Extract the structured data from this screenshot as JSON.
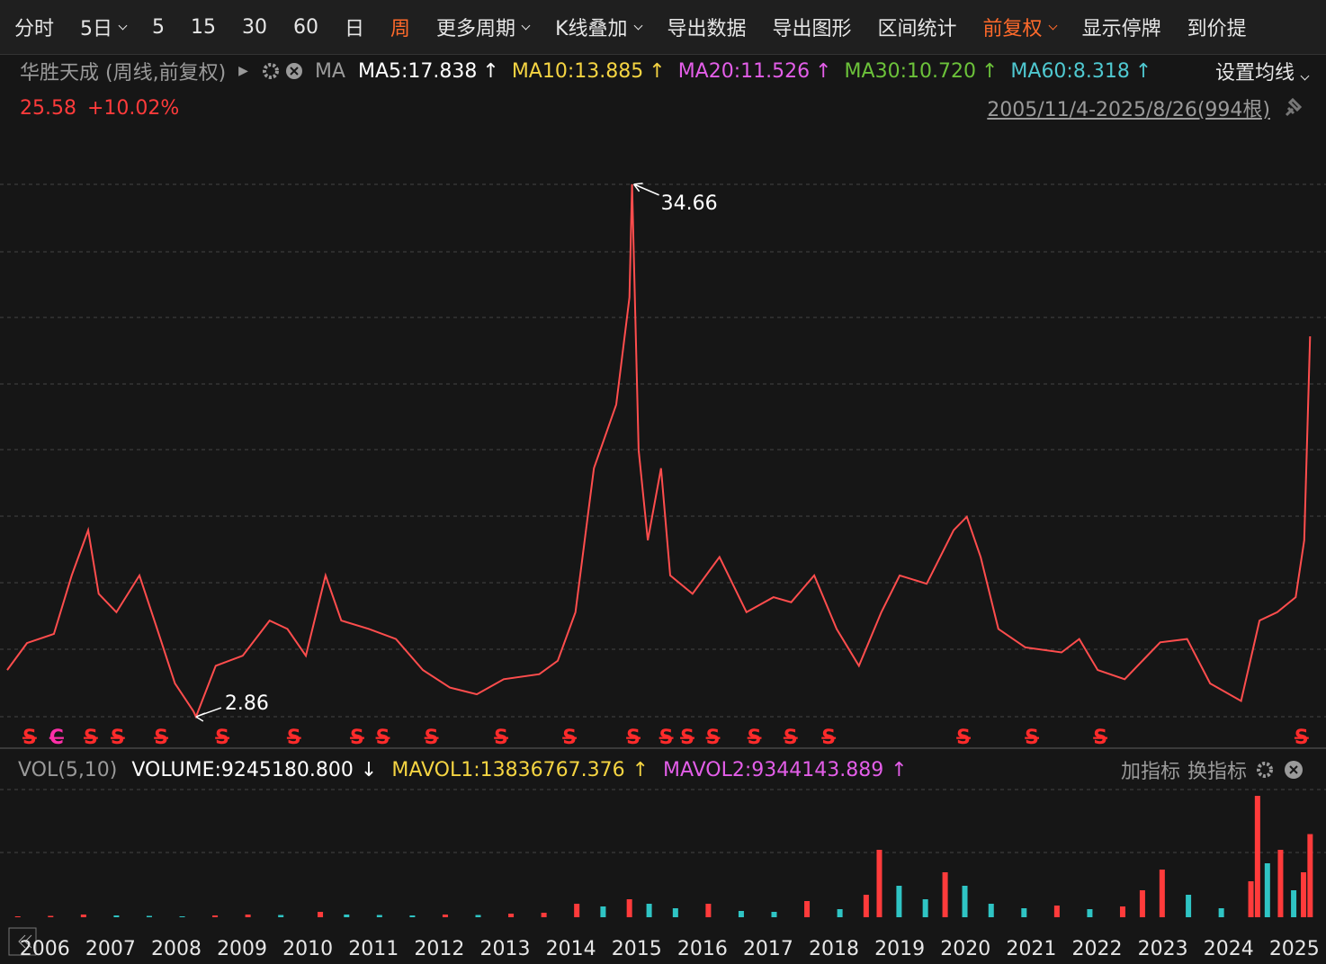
{
  "toolbar": [
    {
      "label": "分时"
    },
    {
      "label": "5日",
      "dropdown": true
    },
    {
      "label": "5"
    },
    {
      "label": "15"
    },
    {
      "label": "30"
    },
    {
      "label": "60"
    },
    {
      "label": "日"
    },
    {
      "label": "周",
      "active": true
    },
    {
      "label": "更多周期",
      "dropdown": true
    },
    {
      "label": "K线叠加",
      "dropdown": true
    },
    {
      "label": "导出数据"
    },
    {
      "label": "导出图形"
    },
    {
      "label": "区间统计"
    },
    {
      "label": "前复权",
      "dropdown": true,
      "active": true
    },
    {
      "label": "显示停牌"
    },
    {
      "label": "到价提"
    }
  ],
  "info": {
    "name": "华胜天成 (周线,前复权)",
    "ma": "MA",
    "ma_items": [
      {
        "label": "MA5:17.838",
        "trend": "↑",
        "color": "#ffffff"
      },
      {
        "label": "MA10:13.885",
        "trend": "↑",
        "color": "#f5d442"
      },
      {
        "label": "MA20:11.526",
        "trend": "↑",
        "color": "#e35ee8"
      },
      {
        "label": "MA30:10.720",
        "trend": "↑",
        "color": "#6cc23a"
      },
      {
        "label": "MA60:8.318",
        "trend": "↑",
        "color": "#4fc8d0"
      }
    ],
    "settings": "设置均线",
    "price": "25.58",
    "change": "+10.02%",
    "range": "2005/11/4-2025/8/26(994根)"
  },
  "vol_header": {
    "name": "VOL(5,10)",
    "items": [
      {
        "label": "VOLUME:9245180.800",
        "trend": "↓",
        "color": "#ffffff"
      },
      {
        "label": "MAVOL1:13836767.376",
        "trend": "↑",
        "color": "#f5d442"
      },
      {
        "label": "MAVOL2:9344143.889",
        "trend": "↑",
        "color": "#e35ee8"
      }
    ],
    "buttons": [
      "加指标",
      "换指标"
    ]
  },
  "chart_data": [
    {
      "type": "line",
      "color": "#ff4d4d",
      "xlim": [
        2005.73,
        2025.7
      ],
      "ylim": [
        2.7,
        37.07
      ],
      "x": [
        2005.84,
        2006.14,
        2006.55,
        2006.82,
        2007.07,
        2007.23,
        2007.5,
        2007.85,
        2008.12,
        2008.39,
        2008.67,
        2008.71,
        2009.01,
        2009.42,
        2009.83,
        2010.1,
        2010.38,
        2010.68,
        2010.92,
        2011.34,
        2011.75,
        2012.16,
        2012.57,
        2012.98,
        2013.39,
        2013.93,
        2014.21,
        2014.48,
        2014.76,
        2015.1,
        2015.3,
        2015.34,
        2015.44,
        2015.58,
        2015.78,
        2015.92,
        2016.26,
        2016.67,
        2017.08,
        2017.49,
        2017.76,
        2018.11,
        2018.45,
        2018.79,
        2019.13,
        2019.41,
        2019.82,
        2020.23,
        2020.43,
        2020.64,
        2020.91,
        2021.32,
        2021.87,
        2022.14,
        2022.42,
        2022.83,
        2023.37,
        2023.78,
        2024.13,
        2024.6,
        2024.88,
        2025.15,
        2025.43,
        2025.56,
        2025.65
      ],
      "values": [
        5.65,
        7.26,
        7.8,
        11.3,
        14.0,
        10.2,
        9.1,
        11.3,
        8.1,
        4.85,
        3.2,
        2.86,
        5.9,
        6.5,
        8.6,
        8.1,
        6.5,
        11.3,
        8.6,
        8.1,
        7.5,
        5.65,
        4.6,
        4.2,
        5.1,
        5.4,
        6.2,
        9.1,
        17.7,
        21.5,
        27.9,
        34.66,
        18.8,
        13.4,
        17.7,
        11.3,
        10.2,
        12.4,
        9.1,
        10.0,
        9.7,
        11.3,
        8.1,
        5.9,
        9.1,
        11.3,
        10.8,
        14.0,
        14.8,
        12.4,
        8.1,
        7.0,
        6.7,
        7.5,
        5.65,
        5.1,
        7.3,
        7.5,
        4.85,
        3.8,
        8.6,
        9.1,
        10.0,
        13.4,
        25.58
      ],
      "annotations": [
        {
          "x": 2015.34,
          "value": 34.66
        },
        {
          "x": 2008.71,
          "value": 2.86
        }
      ],
      "signals": [
        {
          "x": 2006.18,
          "label": "S"
        },
        {
          "x": 2006.59,
          "label": "C"
        },
        {
          "x": 2007.11,
          "label": "S"
        },
        {
          "x": 2007.52,
          "label": "S"
        },
        {
          "x": 2008.18,
          "label": "S"
        },
        {
          "x": 2009.11,
          "label": "S"
        },
        {
          "x": 2010.2,
          "label": "S"
        },
        {
          "x": 2011.16,
          "label": "S"
        },
        {
          "x": 2011.55,
          "label": "S"
        },
        {
          "x": 2012.29,
          "label": "S"
        },
        {
          "x": 2013.35,
          "label": "S"
        },
        {
          "x": 2014.39,
          "label": "S"
        },
        {
          "x": 2015.36,
          "label": "S"
        },
        {
          "x": 2015.86,
          "label": "S"
        },
        {
          "x": 2016.18,
          "label": "S"
        },
        {
          "x": 2016.57,
          "label": "S"
        },
        {
          "x": 2017.2,
          "label": "S"
        },
        {
          "x": 2017.75,
          "label": "S"
        },
        {
          "x": 2018.33,
          "label": "S"
        },
        {
          "x": 2020.38,
          "label": "S"
        },
        {
          "x": 2021.42,
          "label": "S"
        },
        {
          "x": 2022.46,
          "label": "S"
        },
        {
          "x": 2025.52,
          "label": "S"
        }
      ]
    },
    {
      "type": "bar",
      "up_color": "#ff3b3b",
      "down_color": "#2fc4c4",
      "xlim": [
        2005.73,
        2025.7
      ],
      "ylim": [
        0,
        14000000
      ],
      "xticks": [
        2006,
        2007,
        2008,
        2009,
        2010,
        2011,
        2012,
        2013,
        2014,
        2015,
        2016,
        2017,
        2018,
        2019,
        2020,
        2021,
        2022,
        2023,
        2024,
        2025
      ],
      "x": [
        2006.0,
        2006.5,
        2007.0,
        2007.5,
        2008.0,
        2008.5,
        2009.0,
        2009.5,
        2010.0,
        2010.6,
        2011.0,
        2011.5,
        2012.0,
        2012.5,
        2013.0,
        2013.5,
        2014.0,
        2014.5,
        2014.9,
        2015.3,
        2015.6,
        2016.0,
        2016.5,
        2017.0,
        2017.5,
        2018.0,
        2018.5,
        2018.9,
        2019.1,
        2019.4,
        2019.8,
        2020.1,
        2020.4,
        2020.8,
        2021.3,
        2021.8,
        2022.3,
        2022.8,
        2023.1,
        2023.4,
        2023.8,
        2024.3,
        2024.75,
        2024.85,
        2025.0,
        2025.2,
        2025.4,
        2025.55,
        2025.65
      ],
      "values": [
        100000,
        150000,
        300000,
        200000,
        150000,
        100000,
        200000,
        300000,
        250000,
        600000,
        300000,
        250000,
        200000,
        300000,
        250000,
        400000,
        500000,
        1500000,
        1200000,
        2000000,
        1500000,
        1000000,
        1500000,
        700000,
        600000,
        1800000,
        900000,
        2500000,
        7500000,
        3500000,
        2000000,
        5000000,
        3500000,
        1500000,
        1000000,
        1300000,
        900000,
        1200000,
        3000000,
        5300000,
        2500000,
        1000000,
        4000000,
        13500000,
        6000000,
        7500000,
        3000000,
        5000000,
        9245180.8
      ]
    }
  ]
}
